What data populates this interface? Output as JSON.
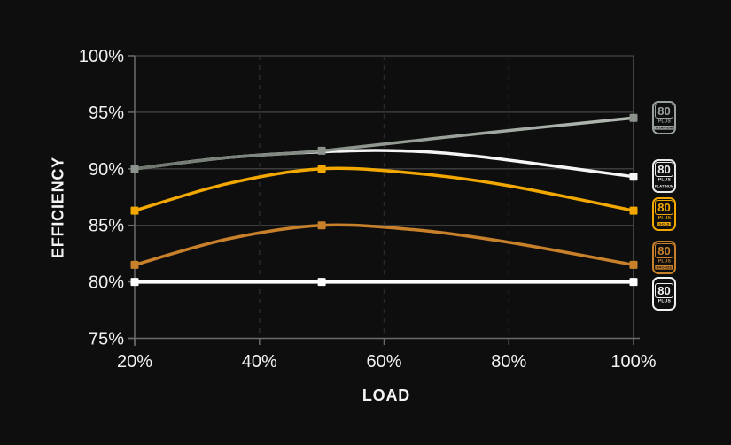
{
  "labels": {
    "x_axis": "LOAD",
    "y_axis": "EFFICIENCY"
  },
  "colors": {
    "background": "#0d0e0d",
    "text": "#f2f2f2"
  },
  "chart_data": {
    "type": "line",
    "title": "",
    "xlabel": "LOAD",
    "ylabel": "EFFICIENCY",
    "xlim": [
      20,
      100
    ],
    "ylim": [
      75,
      100
    ],
    "legend_position": "right-badges",
    "x_ticks": [
      {
        "value": 20,
        "label": "20%",
        "grid": "none"
      },
      {
        "value": 40,
        "label": "40%",
        "grid": "dashed"
      },
      {
        "value": 60,
        "label": "60%",
        "grid": "dashed"
      },
      {
        "value": 80,
        "label": "80%",
        "grid": "dashed"
      },
      {
        "value": 100,
        "label": "100%",
        "grid": "solid"
      }
    ],
    "y_ticks": [
      {
        "value": 100,
        "label": "100%",
        "grid": true
      },
      {
        "value": 95,
        "label": "95%",
        "grid": true
      },
      {
        "value": 90,
        "label": "90%",
        "grid": true
      },
      {
        "value": 85,
        "label": "85%",
        "grid": true
      },
      {
        "value": 80,
        "label": "80%",
        "grid": true
      },
      {
        "value": 75,
        "label": "75%",
        "grid": false
      }
    ],
    "grid": {
      "h_color": "#3c3c3c",
      "v_dash_color": "#2a2a2a",
      "v_solid_color": "#4e524e",
      "axis_color": "#6b6b6b"
    },
    "series": [
      {
        "id": "80-plus",
        "name": "80 Plus",
        "color": "#ffffff",
        "width": 4,
        "points": [
          [
            20,
            80
          ],
          [
            100,
            80
          ]
        ],
        "markers": [
          [
            20,
            80
          ],
          [
            50,
            80
          ],
          [
            100,
            80
          ]
        ]
      },
      {
        "id": "80-plus-bronze",
        "name": "80 Plus Bronze",
        "color": "#c8802b",
        "width": 3.5,
        "points": [
          [
            20,
            81.5
          ],
          [
            35,
            83.8
          ],
          [
            50,
            85
          ],
          [
            65,
            84.6
          ],
          [
            80,
            83.5
          ],
          [
            100,
            81.5
          ]
        ],
        "markers": [
          [
            20,
            81.5
          ],
          [
            50,
            85
          ],
          [
            100,
            81.5
          ]
        ]
      },
      {
        "id": "80-plus-gold",
        "name": "80 Plus Gold",
        "color": "#f2a800",
        "width": 3.5,
        "points": [
          [
            20,
            86.3
          ],
          [
            35,
            88.7
          ],
          [
            50,
            90
          ],
          [
            65,
            89.6
          ],
          [
            80,
            88.5
          ],
          [
            100,
            86.3
          ]
        ],
        "markers": [
          [
            20,
            86.3
          ],
          [
            50,
            90
          ],
          [
            100,
            86.3
          ]
        ]
      },
      {
        "id": "80-plus-platinum",
        "name": "80 Plus Platinum",
        "color": "#f5f5f5",
        "width": 3.5,
        "points": [
          [
            20,
            90
          ],
          [
            35,
            91
          ],
          [
            50,
            91.5
          ],
          [
            62,
            91.6
          ],
          [
            75,
            91.1
          ],
          [
            100,
            89.3
          ]
        ],
        "markers": [
          [
            100,
            89.3
          ]
        ]
      },
      {
        "id": "80-plus-titanium",
        "name": "80 Plus Titanium",
        "color": "#6f766f",
        "color2": "#b4bab4",
        "marker_color": "#8c938c",
        "width": 3.5,
        "points": [
          [
            20,
            90
          ],
          [
            35,
            91
          ],
          [
            50,
            91.6
          ],
          [
            75,
            93.1
          ],
          [
            100,
            94.5
          ]
        ],
        "markers": [
          [
            20,
            90
          ],
          [
            50,
            91.6
          ],
          [
            100,
            94.5
          ]
        ]
      }
    ]
  },
  "badges": [
    {
      "line1": "80",
      "line2": "PLUS",
      "line3": "TITANIUM",
      "color": "#9aa0a0",
      "band_fill": true
    },
    {
      "line1": "80",
      "line2": "PLUS",
      "line3": "PLATINUM",
      "color": "#e9e9e9",
      "band_fill": false
    },
    {
      "line1": "80",
      "line2": "PLUS",
      "line3": "GOLD",
      "color": "#f2a800",
      "band_fill": true
    },
    {
      "line1": "80",
      "line2": "PLUS",
      "line3": "BRONZE",
      "color": "#c8802b",
      "band_fill": true
    },
    {
      "line1": "80",
      "line2": "PLUS",
      "line3": "",
      "color": "#f2f2f2",
      "band_fill": false
    }
  ]
}
